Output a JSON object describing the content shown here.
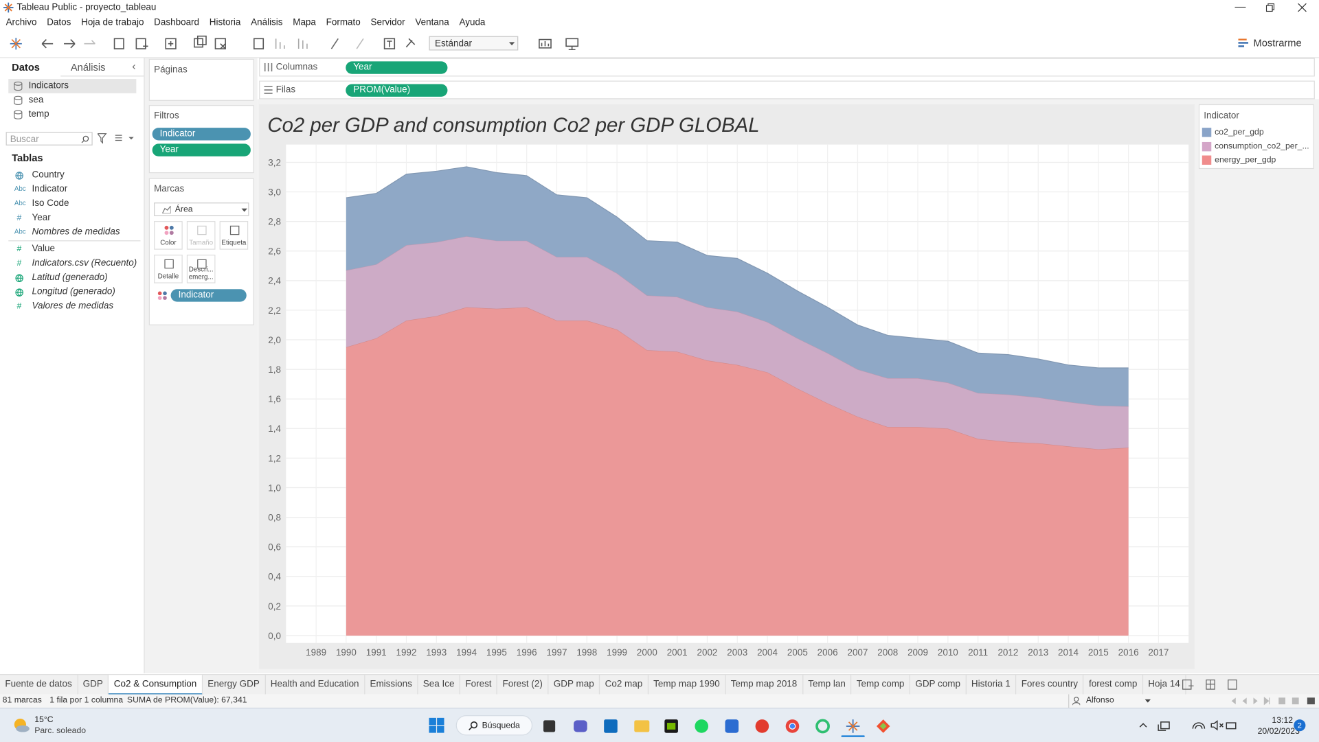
{
  "window": {
    "title": "Tableau Public - proyecto_tableau"
  },
  "menu": [
    "Archivo",
    "Datos",
    "Hoja de trabajo",
    "Dashboard",
    "Historia",
    "Análisis",
    "Mapa",
    "Formato",
    "Servidor",
    "Ventana",
    "Ayuda"
  ],
  "toolbar": {
    "fit": "Estándar",
    "show_me": "Mostrarme"
  },
  "data_pane": {
    "tabs": [
      "Datos",
      "Análisis"
    ],
    "sources": [
      "Indicators",
      "sea",
      "temp"
    ],
    "search": "Buscar",
    "tables_heading": "Tablas",
    "dimensions": [
      {
        "name": "Country"
      },
      {
        "icon": "Abc",
        "name": "Indicator"
      },
      {
        "icon": "Abc",
        "name": "Iso Code"
      },
      {
        "icon": "#",
        "name": "Year"
      },
      {
        "icon": "Abc",
        "name": "Nombres de medidas",
        "italic": true
      }
    ],
    "measures": [
      {
        "icon": "#",
        "name": "Value"
      },
      {
        "icon": "#",
        "name": "Indicators.csv (Recuento)",
        "italic": true
      },
      {
        "name": "Latitud (generado)",
        "italic": true
      },
      {
        "name": "Longitud (generado)",
        "italic": true
      },
      {
        "icon": "#",
        "name": "Valores de medidas",
        "italic": true
      }
    ]
  },
  "pages": {
    "title": "Páginas"
  },
  "filters": {
    "title": "Filtros",
    "pills": [
      "Indicator",
      "Year"
    ]
  },
  "marks": {
    "title": "Marcas",
    "type": "Área",
    "buttons": [
      "Color",
      "Tamaño",
      "Etiqueta",
      "Detalle",
      "Descri... emerg..."
    ],
    "pill": "Indicator"
  },
  "shelves": {
    "columns_label": "Columnas",
    "columns_pill": "Year",
    "rows_label": "Filas",
    "rows_pill": "PROM(Value)"
  },
  "chart_data": {
    "type": "stacked_area",
    "title": "Co2 per GDP and consumption Co2 per GDP GLOBAL",
    "legend_title": "Indicator",
    "x": [
      1990,
      1991,
      1992,
      1993,
      1994,
      1995,
      1996,
      1997,
      1998,
      1999,
      2000,
      2001,
      2002,
      2003,
      2004,
      2005,
      2006,
      2007,
      2008,
      2009,
      2010,
      2011,
      2012,
      2013,
      2014,
      2015,
      2016
    ],
    "series": [
      {
        "name": "co2_per_gdp",
        "color": "#8fa8c6",
        "legend_color": "#8aa4c8",
        "values": [
          0.49,
          0.48,
          0.48,
          0.48,
          0.47,
          0.46,
          0.44,
          0.42,
          0.4,
          0.38,
          0.37,
          0.37,
          0.35,
          0.36,
          0.33,
          0.32,
          0.31,
          0.3,
          0.29,
          0.27,
          0.28,
          0.27,
          0.27,
          0.26,
          0.25,
          0.255,
          0.26
        ]
      },
      {
        "name": "consumption_co2_per_...",
        "color": "#cdabc6",
        "legend_color": "#d4a6c8",
        "values": [
          0.52,
          0.5,
          0.51,
          0.5,
          0.48,
          0.46,
          0.45,
          0.43,
          0.43,
          0.38,
          0.37,
          0.37,
          0.36,
          0.36,
          0.34,
          0.34,
          0.34,
          0.32,
          0.33,
          0.33,
          0.31,
          0.31,
          0.32,
          0.31,
          0.3,
          0.295,
          0.28
        ]
      },
      {
        "name": "energy_per_gdp",
        "color": "#eb9898",
        "legend_color": "#f08c8c",
        "values": [
          1.95,
          2.01,
          2.13,
          2.16,
          2.22,
          2.21,
          2.22,
          2.13,
          2.13,
          2.07,
          1.93,
          1.92,
          1.86,
          1.83,
          1.78,
          1.67,
          1.57,
          1.48,
          1.41,
          1.41,
          1.4,
          1.33,
          1.31,
          1.3,
          1.28,
          1.26,
          1.27
        ]
      }
    ],
    "xlim": [
      1988,
      2018
    ],
    "xticks": [
      1989,
      1990,
      1991,
      1992,
      1993,
      1994,
      1995,
      1996,
      1997,
      1998,
      1999,
      2000,
      2001,
      2002,
      2003,
      2004,
      2005,
      2006,
      2007,
      2008,
      2009,
      2010,
      2011,
      2012,
      2013,
      2014,
      2015,
      2016,
      2017
    ],
    "ylim": [
      -0.05,
      3.32
    ],
    "yticks": [
      {
        "value": 0,
        "label": "0,0"
      },
      {
        "value": 0.2,
        "label": "0,2"
      },
      {
        "value": 0.4,
        "label": "0,4"
      },
      {
        "value": 0.6,
        "label": "0,6"
      },
      {
        "value": 0.8,
        "label": "0,8"
      },
      {
        "value": 1,
        "label": "1,0"
      },
      {
        "value": 1.2,
        "label": "1,2"
      },
      {
        "value": 1.4,
        "label": "1,4"
      },
      {
        "value": 1.6,
        "label": "1,6"
      },
      {
        "value": 1.8,
        "label": "1,8"
      },
      {
        "value": 2,
        "label": "2,0"
      },
      {
        "value": 2.2,
        "label": "2,2"
      },
      {
        "value": 2.4,
        "label": "2,4"
      },
      {
        "value": 2.6,
        "label": "2,6"
      },
      {
        "value": 2.8,
        "label": "2,8"
      },
      {
        "value": 3,
        "label": "3,0"
      },
      {
        "value": 3.2,
        "label": "3,2"
      }
    ],
    "grid": true
  },
  "sheet_tabs": [
    "Fuente de datos",
    "GDP",
    "Co2 & Consumption",
    "Energy GDP",
    "Health and Education",
    "Emissions",
    "Sea Ice",
    "Forest",
    "Forest (2)",
    "GDP map",
    "Co2 map",
    "Temp map 1990",
    "Temp map 2018",
    "Temp lan",
    "Temp comp",
    "GDP comp",
    "Historia 1",
    "Fores country",
    "forest comp",
    "Hoja 14"
  ],
  "active_sheet_index": 2,
  "status": {
    "marks": "81 marcas",
    "layout": "1 fila por 1 columna",
    "sum": "SUMA de PROM(Value): 67,341",
    "user": "Alfonso"
  },
  "taskbar": {
    "temperature": "15°C",
    "weather": "Parc. soleado",
    "search": "Búsqueda",
    "time": "13:12",
    "date": "20/02/2023",
    "notifications": "2"
  }
}
